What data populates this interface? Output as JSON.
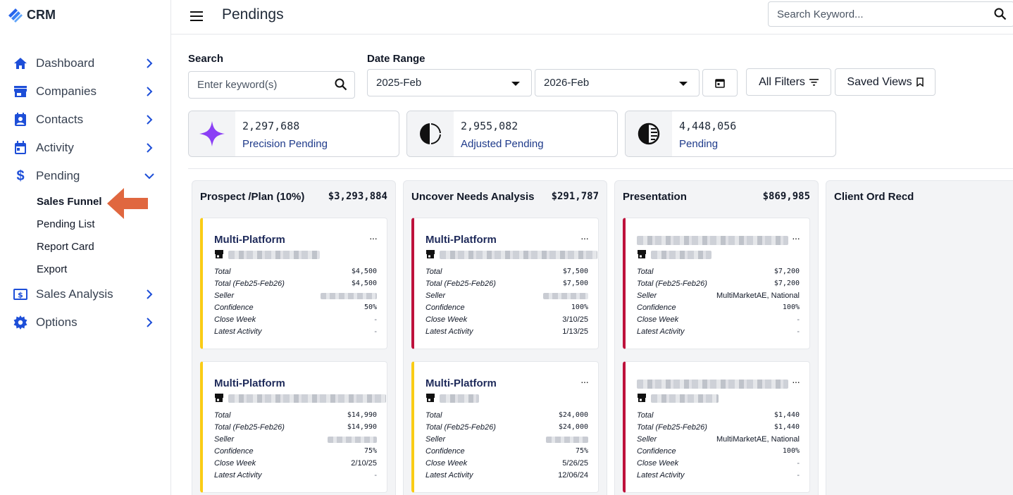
{
  "app": {
    "brand": "CRM"
  },
  "header": {
    "title": "Pendings",
    "search_placeholder": "Search Keyword..."
  },
  "sidebar": {
    "items": [
      {
        "label": "Dashboard",
        "icon": "home-icon"
      },
      {
        "label": "Companies",
        "icon": "store-icon"
      },
      {
        "label": "Contacts",
        "icon": "contact-card-icon"
      },
      {
        "label": "Activity",
        "icon": "calendar-icon"
      },
      {
        "label": "Pending",
        "icon": "dollar-icon",
        "expanded": true,
        "children": [
          "Sales Funnel",
          "Pending List",
          "Report Card",
          "Export"
        ],
        "active_child": "Sales Funnel"
      },
      {
        "label": "Sales Analysis",
        "icon": "money-icon"
      },
      {
        "label": "Options",
        "icon": "gear-icon"
      }
    ]
  },
  "filters": {
    "search_label": "Search",
    "search_placeholder": "Enter keyword(s)",
    "date_range_label": "Date Range",
    "date_from": "2025-Feb",
    "date_to": "2026-Feb",
    "all_filters": "All Filters",
    "saved_views": "Saved Views"
  },
  "metrics": [
    {
      "value": "2,297,688",
      "label": "Precision Pending",
      "icon": "sparkle-icon",
      "color": "#8b3ff5"
    },
    {
      "value": "2,955,082",
      "label": "Adjusted Pending",
      "icon": "pie-chart-icon"
    },
    {
      "value": "4,448,056",
      "label": "Pending",
      "icon": "half-circle-icon"
    }
  ],
  "columns": [
    {
      "title": "Prospect /Plan (10%)",
      "total": "$3,293,884",
      "cards": [
        {
          "title": "Multi-Platform",
          "accent": "#facc15",
          "total": "$4,500",
          "total_range": "$4,500",
          "seller": "",
          "confidence": "50%",
          "close_week": "-",
          "latest_activity": "-"
        },
        {
          "title": "Multi-Platform",
          "accent": "#facc15",
          "total": "$14,990",
          "total_range": "$14,990",
          "seller": "",
          "confidence": "75%",
          "close_week": "2/10/25",
          "latest_activity": "-"
        }
      ]
    },
    {
      "title": "Uncover Needs Analysis",
      "total": "$291,787",
      "cards": [
        {
          "title": "Multi-Platform",
          "accent": "#be123c",
          "total": "$7,500",
          "total_range": "$7,500",
          "seller": "",
          "confidence": "100%",
          "close_week": "3/10/25",
          "latest_activity": "1/13/25"
        },
        {
          "title": "Multi-Platform",
          "accent": "#facc15",
          "total": "$24,000",
          "total_range": "$24,000",
          "seller": "",
          "confidence": "75%",
          "close_week": "5/26/25",
          "latest_activity": "12/06/24"
        }
      ]
    },
    {
      "title": "Presentation",
      "total": "$869,985",
      "cards": [
        {
          "title": "",
          "accent": "#be123c",
          "total": "$7,200",
          "total_range": "$7,200",
          "seller": "MultiMarketAE, National",
          "confidence": "100%",
          "close_week": "-",
          "latest_activity": "-"
        },
        {
          "title": "",
          "accent": "#be123c",
          "total": "$1,440",
          "total_range": "$1,440",
          "seller": "MultiMarketAE, National",
          "confidence": "100%",
          "close_week": "-",
          "latest_activity": "-"
        }
      ]
    },
    {
      "title": "Client Ord Recd",
      "total": "",
      "cards": []
    }
  ],
  "card_field_labels": {
    "total": "Total",
    "total_range": "Total (Feb25-Feb26)",
    "seller": "Seller",
    "confidence": "Confidence",
    "close_week": "Close Week",
    "latest_activity": "Latest Activity"
  }
}
